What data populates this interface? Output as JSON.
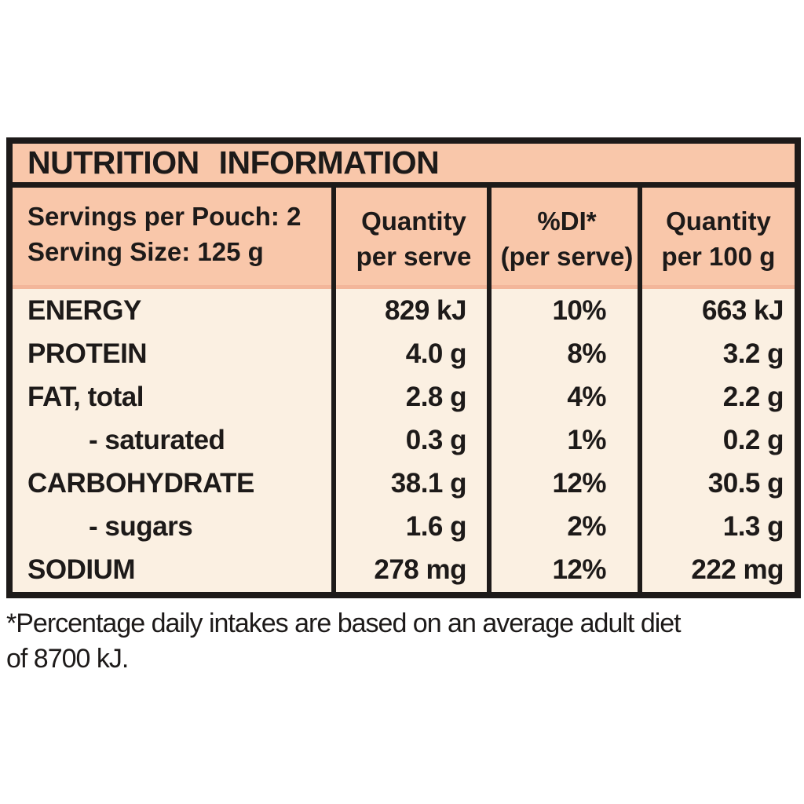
{
  "title": "NUTRITION INFORMATION",
  "header": {
    "servings": "Servings per Pouch: 2",
    "serving_size": "Serving Size: 125 g",
    "col_per_serve_line1": "Quantity",
    "col_per_serve_line2": "per serve",
    "col_di_line1": "%DI*",
    "col_di_line2": "(per serve)",
    "col_per_100g_line1": "Quantity",
    "col_per_100g_line2": "per 100 g"
  },
  "rows": [
    {
      "label": "ENERGY",
      "per_serve": "829 kJ",
      "di": "10%",
      "per_100g": "663 kJ"
    },
    {
      "label": "PROTEIN",
      "per_serve": "4.0 g",
      "di": "8%",
      "per_100g": "3.2 g"
    },
    {
      "label": "FAT, total",
      "per_serve": "2.8 g",
      "di": "4%",
      "per_100g": "2.2 g"
    },
    {
      "label": "- saturated",
      "per_serve": "0.3 g",
      "di": "1%",
      "per_100g": "0.2 g"
    },
    {
      "label": "CARBOHYDRATE",
      "per_serve": "38.1 g",
      "di": "12%",
      "per_100g": "30.5 g"
    },
    {
      "label": "- sugars",
      "per_serve": "1.6 g",
      "di": "2%",
      "per_100g": "1.3 g"
    },
    {
      "label": "SODIUM",
      "per_serve": "278 mg",
      "di": "12%",
      "per_100g": "222 mg"
    }
  ],
  "footnote": {
    "line1": "*Percentage daily intakes are based on an average adult diet",
    "line2": "of 8700 kJ."
  },
  "colors": {
    "header_bg": "#f9c7aa",
    "body_bg": "#fbf0e2",
    "border": "#1d1a19",
    "header_bottom_edge": "#f3b69a",
    "page_bg": "#ffffff",
    "text": "#1d1a19"
  }
}
